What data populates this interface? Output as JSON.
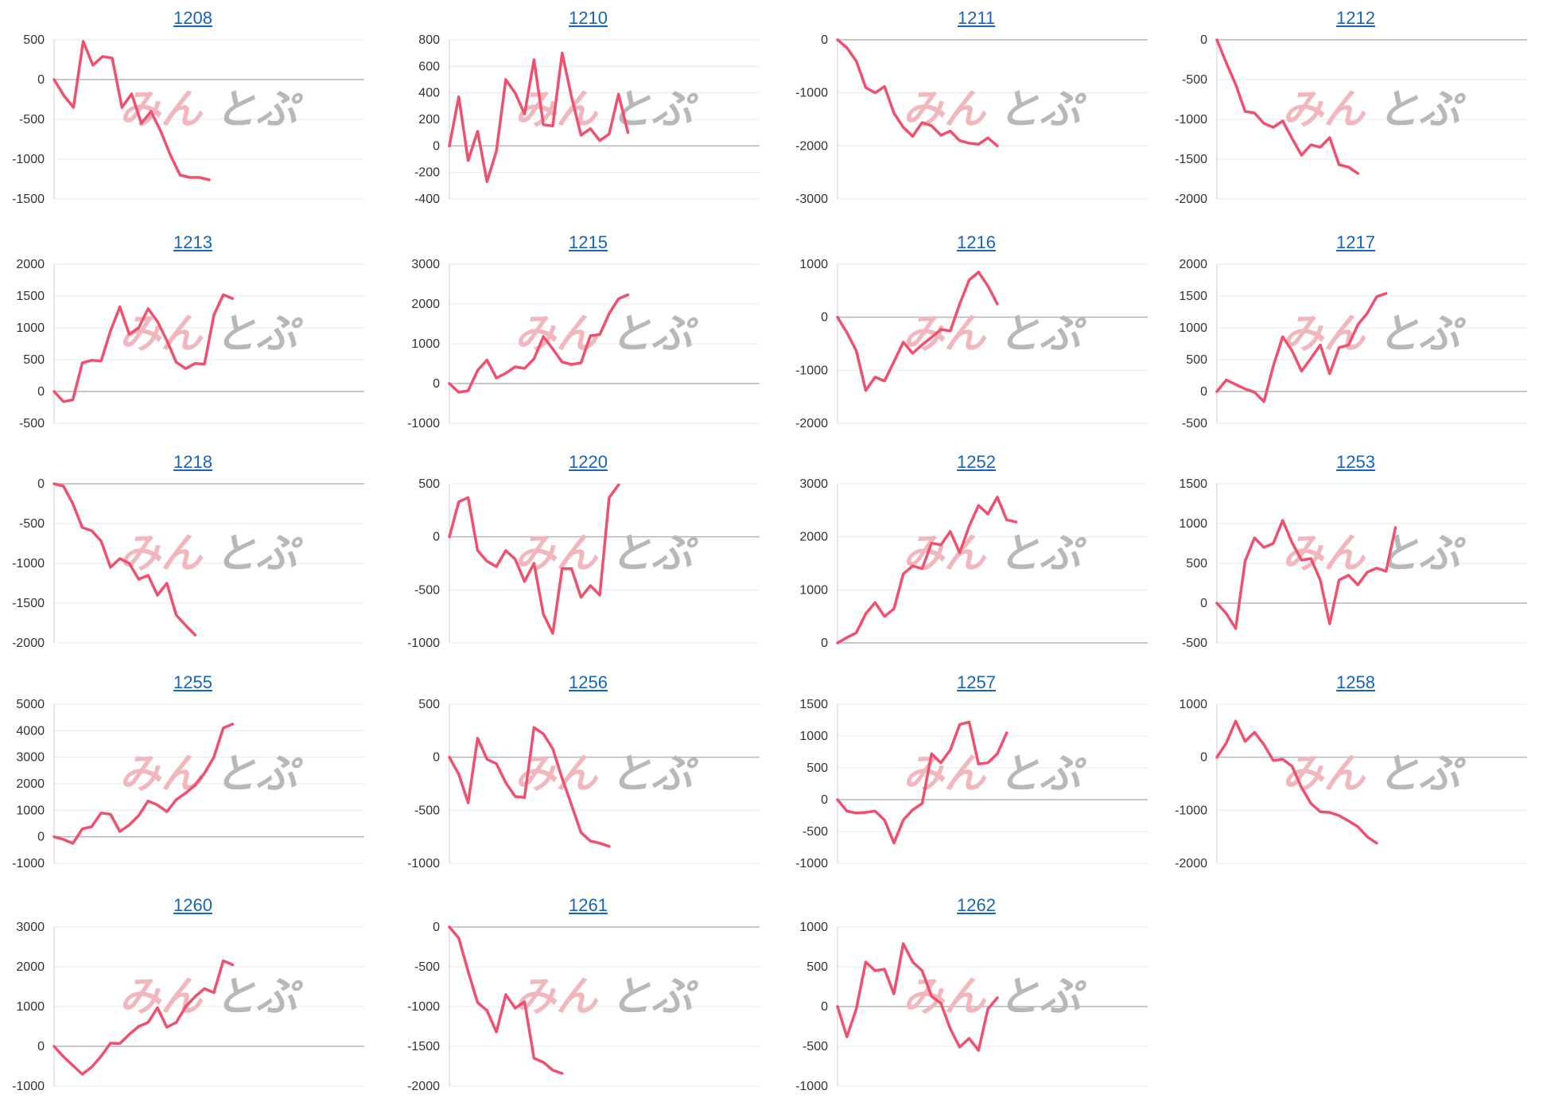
{
  "line_color": "#f0506e",
  "link_color": "#1565c0",
  "watermark": {
    "part_a": "みん",
    "part_b": "とぷ"
  },
  "chart_data": [
    {
      "type": "line",
      "title": "1208",
      "yticks": [
        500,
        0,
        -500,
        -1000,
        -1500
      ],
      "x_count": 33,
      "values": [
        0,
        -200,
        -350,
        480,
        180,
        290,
        270,
        -350,
        -180,
        -550,
        -400,
        -650,
        -950,
        -1200,
        -1230,
        -1230,
        -1260
      ]
    },
    {
      "type": "line",
      "title": "1210",
      "yticks": [
        800,
        600,
        400,
        200,
        0,
        -200,
        -400
      ],
      "x_count": 34,
      "values": [
        0,
        370,
        -110,
        110,
        -270,
        -40,
        500,
        400,
        240,
        650,
        160,
        150,
        700,
        370,
        80,
        130,
        40,
        90,
        390,
        100
      ]
    },
    {
      "type": "line",
      "title": "1211",
      "yticks": [
        0,
        -1000,
        -2000,
        -3000
      ],
      "x_count": 34,
      "values": [
        0,
        -150,
        -400,
        -900,
        -1000,
        -880,
        -1380,
        -1650,
        -1820,
        -1560,
        -1620,
        -1800,
        -1720,
        -1900,
        -1950,
        -1970,
        -1850,
        -2000
      ]
    },
    {
      "type": "line",
      "title": "1212",
      "yticks": [
        0,
        -500,
        -1000,
        -1500,
        -2000
      ],
      "x_count": 34,
      "values": [
        0,
        -290,
        -560,
        -900,
        -920,
        -1050,
        -1100,
        -1020,
        -1240,
        -1450,
        -1320,
        -1350,
        -1230,
        -1570,
        -1600,
        -1680
      ]
    },
    {
      "type": "line",
      "title": "1213",
      "yticks": [
        2000,
        1500,
        1000,
        500,
        0,
        -500
      ],
      "x_count": 34,
      "values": [
        0,
        -160,
        -130,
        450,
        490,
        480,
        950,
        1330,
        900,
        1000,
        1300,
        1100,
        800,
        460,
        360,
        440,
        430,
        1200,
        1520,
        1460
      ]
    },
    {
      "type": "line",
      "title": "1215",
      "yticks": [
        3000,
        2000,
        1000,
        0,
        -1000
      ],
      "x_count": 34,
      "values": [
        0,
        -220,
        -180,
        330,
        590,
        140,
        260,
        420,
        380,
        620,
        1180,
        870,
        540,
        480,
        520,
        1200,
        1230,
        1760,
        2130,
        2230
      ]
    },
    {
      "type": "line",
      "title": "1216",
      "yticks": [
        1000,
        0,
        -1000,
        -2000
      ],
      "x_count": 34,
      "values": [
        0,
        -290,
        -630,
        -1380,
        -1130,
        -1200,
        -840,
        -470,
        -680,
        -520,
        -380,
        -230,
        -260,
        250,
        700,
        850,
        590,
        250
      ]
    },
    {
      "type": "line",
      "title": "1217",
      "yticks": [
        2000,
        1500,
        1000,
        500,
        0,
        -500
      ],
      "x_count": 34,
      "values": [
        0,
        180,
        110,
        40,
        -10,
        -160,
        400,
        860,
        640,
        320,
        520,
        730,
        280,
        690,
        730,
        1050,
        1230,
        1490,
        1540
      ]
    },
    {
      "type": "line",
      "title": "1218",
      "yticks": [
        0,
        -500,
        -1000,
        -1500,
        -2000
      ],
      "x_count": 34,
      "values": [
        0,
        -30,
        -250,
        -550,
        -590,
        -720,
        -1050,
        -940,
        -1000,
        -1200,
        -1150,
        -1400,
        -1250,
        -1650,
        -1780,
        -1900
      ]
    },
    {
      "type": "line",
      "title": "1220",
      "yticks": [
        500,
        0,
        -500,
        -1000
      ],
      "x_count": 34,
      "values": [
        0,
        330,
        370,
        -130,
        -230,
        -280,
        -130,
        -210,
        -420,
        -250,
        -730,
        -910,
        -300,
        -300,
        -570,
        -460,
        -550,
        370,
        490
      ]
    },
    {
      "type": "line",
      "title": "1252",
      "yticks": [
        3000,
        2000,
        1000,
        0
      ],
      "x_count": 34,
      "values": [
        0,
        100,
        190,
        550,
        760,
        500,
        640,
        1300,
        1450,
        1400,
        1880,
        1850,
        2100,
        1700,
        2200,
        2590,
        2430,
        2750,
        2320,
        2280
      ]
    },
    {
      "type": "line",
      "title": "1253",
      "yticks": [
        1500,
        1000,
        500,
        0,
        -500
      ],
      "x_count": 34,
      "values": [
        0,
        -130,
        -320,
        530,
        820,
        700,
        750,
        1040,
        760,
        540,
        560,
        290,
        -260,
        290,
        350,
        230,
        390,
        440,
        400,
        950
      ]
    },
    {
      "type": "line",
      "title": "1255",
      "yticks": [
        5000,
        4000,
        3000,
        2000,
        1000,
        0,
        -1000
      ],
      "x_count": 34,
      "values": [
        0,
        -100,
        -250,
        300,
        380,
        900,
        850,
        200,
        450,
        800,
        1350,
        1200,
        950,
        1400,
        1650,
        1950,
        2400,
        3000,
        4100,
        4250
      ]
    },
    {
      "type": "line",
      "title": "1256",
      "yticks": [
        500,
        0,
        -500,
        -1000
      ],
      "x_count": 34,
      "values": [
        0,
        -160,
        -430,
        180,
        -20,
        -60,
        -240,
        -370,
        -380,
        280,
        220,
        80,
        -200,
        -450,
        -710,
        -790,
        -810,
        -840
      ]
    },
    {
      "type": "line",
      "title": "1257",
      "yticks": [
        1500,
        1000,
        500,
        0,
        -500,
        -1000
      ],
      "x_count": 34,
      "values": [
        0,
        -180,
        -210,
        -200,
        -180,
        -320,
        -680,
        -320,
        -160,
        -60,
        720,
        580,
        780,
        1180,
        1220,
        560,
        580,
        720,
        1050
      ]
    },
    {
      "type": "line",
      "title": "1258",
      "yticks": [
        1000,
        0,
        -1000,
        -2000
      ],
      "x_count": 34,
      "values": [
        0,
        270,
        680,
        300,
        470,
        240,
        -60,
        -40,
        -170,
        -570,
        -870,
        -1030,
        -1040,
        -1100,
        -1200,
        -1310,
        -1500,
        -1620
      ]
    },
    {
      "type": "line",
      "title": "1260",
      "yticks": [
        3000,
        2000,
        1000,
        0,
        -1000
      ],
      "x_count": 34,
      "values": [
        0,
        -260,
        -480,
        -700,
        -520,
        -250,
        80,
        70,
        300,
        500,
        600,
        970,
        480,
        600,
        1000,
        1250,
        1450,
        1350,
        2150,
        2050
      ]
    },
    {
      "type": "line",
      "title": "1261",
      "yticks": [
        0,
        -500,
        -1000,
        -1500,
        -2000
      ],
      "x_count": 34,
      "values": [
        0,
        -140,
        -560,
        -950,
        -1050,
        -1320,
        -850,
        -1020,
        -940,
        -1650,
        -1700,
        -1800,
        -1840
      ]
    },
    {
      "type": "line",
      "title": "1262",
      "yticks": [
        1000,
        500,
        0,
        -500,
        -1000
      ],
      "x_count": 34,
      "values": [
        0,
        -380,
        -30,
        560,
        450,
        470,
        160,
        790,
        560,
        450,
        130,
        40,
        -280,
        -510,
        -400,
        -550,
        -30,
        110
      ]
    }
  ]
}
